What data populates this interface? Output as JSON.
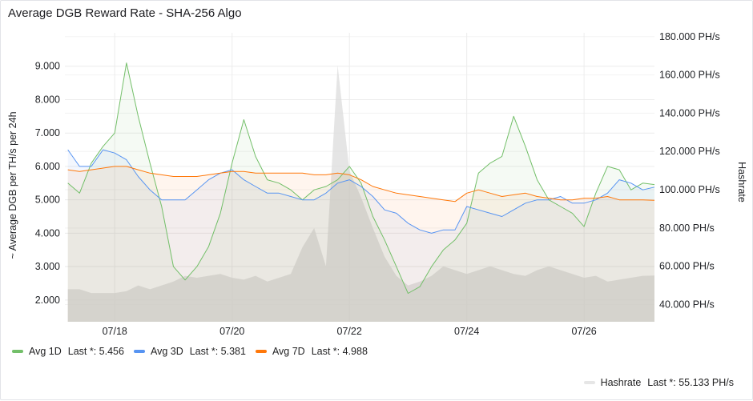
{
  "panel": {
    "title": "Average DGB Reward Rate - SHA-256 Algo"
  },
  "legend": {
    "items": [
      {
        "name": "Avg 1D",
        "last": "Last *: 5.456",
        "color": "#73bf69"
      },
      {
        "name": "Avg 3D",
        "last": "Last *: 5.381",
        "color": "#5794f2"
      },
      {
        "name": "Avg 7D",
        "last": "Last *: 4.988",
        "color": "#ff780a"
      }
    ],
    "hashrate": {
      "name": "Hashrate",
      "last": "Last *: 55.133 PH/s",
      "color": "#d9d9d9"
    }
  },
  "chart_data": {
    "type": "line",
    "title": "Average DGB Reward Rate - SHA-256 Algo",
    "ylabel": "~ Average DGB per TH/s per 24h",
    "y2label": "Hashrate",
    "y_ticks": [
      "2.000",
      "3.000",
      "4.000",
      "5.000",
      "6.000",
      "7.000",
      "8.000",
      "9.000"
    ],
    "y_tick_values": [
      2,
      3,
      4,
      5,
      6,
      7,
      8,
      9
    ],
    "y2_ticks": [
      "40.000 PH/s",
      "60.000 PH/s",
      "80.000 PH/s",
      "100.000 PH/s",
      "120.000 PH/s",
      "140.000 PH/s",
      "160.000 PH/s",
      "180.000 PH/s"
    ],
    "y2_tick_values": [
      40,
      60,
      80,
      100,
      120,
      140,
      160,
      180
    ],
    "x_ticks": [
      "07/18",
      "07/20",
      "07/22",
      "07/24",
      "07/26"
    ],
    "x_tick_values": [
      18,
      20,
      22,
      24,
      26
    ],
    "xlim": [
      17.15,
      27.2
    ],
    "ylim": [
      1.35,
      10.0
    ],
    "y2lim": [
      31,
      182
    ],
    "grid": true,
    "legend_position": "bottom",
    "x": [
      17.2,
      17.4,
      17.6,
      17.8,
      18.0,
      18.2,
      18.4,
      18.6,
      18.8,
      19.0,
      19.2,
      19.4,
      19.6,
      19.8,
      20.0,
      20.2,
      20.4,
      20.6,
      20.8,
      21.0,
      21.2,
      21.4,
      21.6,
      21.8,
      22.0,
      22.2,
      22.4,
      22.6,
      22.8,
      23.0,
      23.2,
      23.4,
      23.6,
      23.8,
      24.0,
      24.2,
      24.4,
      24.6,
      24.8,
      25.0,
      25.2,
      25.4,
      25.6,
      25.8,
      26.0,
      26.2,
      26.4,
      26.6,
      26.8,
      27.0,
      27.2
    ],
    "series": [
      {
        "name": "Avg 1D",
        "values": [
          5.5,
          5.2,
          6.1,
          6.6,
          7.0,
          9.1,
          7.5,
          6.1,
          4.8,
          3.0,
          2.6,
          3.0,
          3.6,
          4.6,
          6.1,
          7.4,
          6.3,
          5.6,
          5.5,
          5.3,
          5.0,
          5.3,
          5.4,
          5.6,
          6.0,
          5.5,
          4.5,
          3.8,
          3.0,
          2.2,
          2.4,
          3.0,
          3.5,
          3.8,
          4.3,
          5.8,
          6.1,
          6.3,
          7.5,
          6.6,
          5.6,
          5.0,
          4.8,
          4.6,
          4.2,
          5.2,
          6.0,
          5.9,
          5.3,
          5.5,
          5.456
        ]
      },
      {
        "name": "Avg 3D",
        "values": [
          6.5,
          6.0,
          6.0,
          6.5,
          6.4,
          6.2,
          5.7,
          5.3,
          5.0,
          5.0,
          5.0,
          5.3,
          5.6,
          5.8,
          5.9,
          5.6,
          5.4,
          5.2,
          5.2,
          5.1,
          5.0,
          5.0,
          5.2,
          5.5,
          5.6,
          5.4,
          5.1,
          4.7,
          4.6,
          4.3,
          4.1,
          4.0,
          4.1,
          4.1,
          4.8,
          4.7,
          4.6,
          4.5,
          4.7,
          4.9,
          5.0,
          5.0,
          5.1,
          4.9,
          4.9,
          5.0,
          5.2,
          5.6,
          5.5,
          5.3,
          5.381
        ]
      },
      {
        "name": "Avg 7D",
        "values": [
          5.9,
          5.85,
          5.9,
          5.95,
          6.0,
          6.0,
          5.9,
          5.8,
          5.75,
          5.7,
          5.7,
          5.7,
          5.75,
          5.8,
          5.85,
          5.85,
          5.8,
          5.8,
          5.8,
          5.8,
          5.8,
          5.75,
          5.75,
          5.8,
          5.75,
          5.6,
          5.4,
          5.3,
          5.2,
          5.15,
          5.1,
          5.05,
          5.0,
          4.95,
          5.2,
          5.3,
          5.2,
          5.1,
          5.15,
          5.2,
          5.1,
          5.05,
          5.0,
          5.0,
          5.05,
          5.05,
          5.1,
          5.0,
          5.0,
          5.0,
          4.988
        ]
      },
      {
        "name": "Hashrate",
        "axis": "right",
        "values": [
          48,
          48,
          46,
          46,
          46,
          47,
          50,
          48,
          50,
          52,
          55,
          54,
          55,
          56,
          54,
          53,
          55,
          52,
          54,
          56,
          70,
          80,
          60,
          165,
          110,
          96,
          80,
          65,
          55,
          50,
          52,
          55,
          60,
          58,
          56,
          58,
          60,
          58,
          56,
          55,
          58,
          60,
          58,
          56,
          54,
          55,
          52,
          53,
          54,
          55,
          55.133
        ]
      }
    ]
  }
}
